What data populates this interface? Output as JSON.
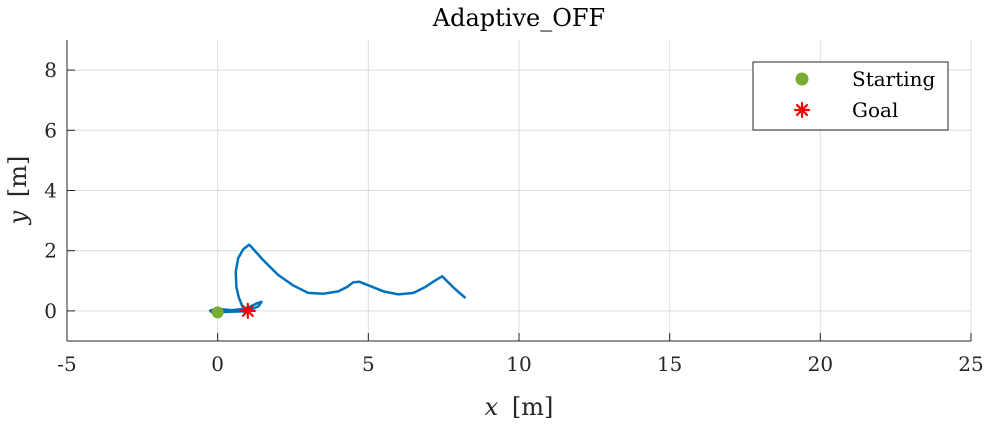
{
  "chart_data": {
    "type": "line",
    "title": "Adaptive_OFF",
    "xlabel_var": "x",
    "xlabel_unit": "[m]",
    "ylabel_var": "y",
    "ylabel_unit": "[m]",
    "xlim": [
      -5,
      25
    ],
    "ylim": [
      -1,
      9
    ],
    "xticks": [
      -5,
      0,
      5,
      10,
      15,
      20,
      25
    ],
    "xtick_labels": [
      "-5",
      "0",
      "5",
      "10",
      "15",
      "20",
      "25"
    ],
    "yticks": [
      0,
      2,
      4,
      6,
      8
    ],
    "ytick_labels": [
      "0",
      "2",
      "4",
      "6",
      "8"
    ],
    "grid": true,
    "legend_position": "top-right",
    "series": [
      {
        "type": "line",
        "color": "#0072BD",
        "x": [
          0.0,
          0.2,
          0.45,
          0.8,
          1.05,
          1.3,
          1.45,
          1.35,
          1.1,
          0.95,
          0.9,
          0.7,
          0.4,
          0.1,
          -0.1,
          -0.25,
          -0.2,
          0.05,
          0.4,
          0.7,
          0.9,
          1.0,
          1.0,
          0.9,
          0.8,
          0.7,
          0.62,
          0.6,
          0.68,
          0.85,
          1.05,
          1.5,
          2.0,
          2.5,
          3.0,
          3.5,
          4.0,
          4.3,
          4.5,
          4.7,
          5.0,
          5.5,
          6.0,
          6.5,
          6.9,
          7.2,
          7.45,
          7.6,
          7.8,
          8.0,
          8.2
        ],
        "y": [
          -0.05,
          -0.02,
          0.02,
          0.06,
          0.13,
          0.25,
          0.3,
          0.15,
          0.05,
          0.0,
          -0.03,
          0.0,
          0.03,
          0.06,
          0.05,
          0.01,
          -0.04,
          -0.04,
          -0.03,
          -0.02,
          -0.01,
          0.0,
          0.0,
          0.02,
          0.2,
          0.45,
          0.8,
          1.3,
          1.75,
          2.05,
          2.2,
          1.7,
          1.2,
          0.85,
          0.6,
          0.57,
          0.65,
          0.8,
          0.95,
          0.97,
          0.85,
          0.65,
          0.55,
          0.6,
          0.8,
          1.0,
          1.15,
          1.0,
          0.8,
          0.62,
          0.45
        ]
      }
    ],
    "points": [
      {
        "name": "Starting",
        "x": 0.0,
        "y": -0.05,
        "color": "#77AC30",
        "marker": "circle"
      },
      {
        "name": "Goal",
        "x": 1.0,
        "y": 0.0,
        "color": "#FF0000",
        "marker": "asterisk"
      }
    ],
    "legend": [
      {
        "label": "Starting",
        "marker": "circle",
        "color": "#77AC30"
      },
      {
        "label": "Goal",
        "marker": "asterisk",
        "color": "#FF0000"
      }
    ]
  }
}
